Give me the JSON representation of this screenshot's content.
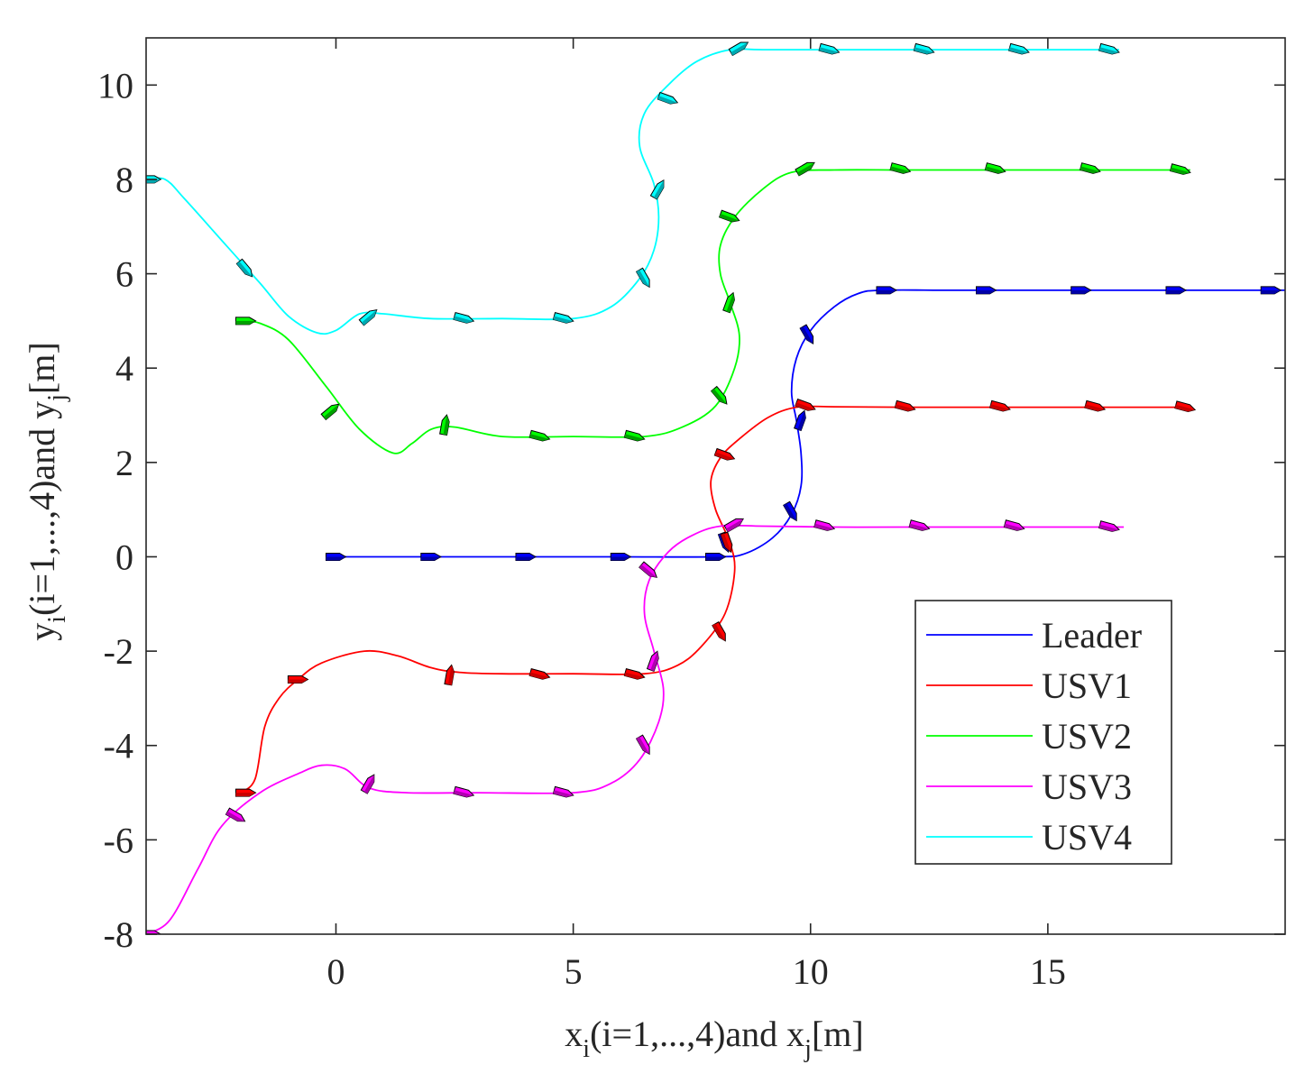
{
  "chart_data": {
    "type": "line",
    "title": "",
    "xlabel": "x_i(i=1,...,4)and x_j[m]",
    "ylabel": "y_i(i=1,...,4)and y_j[m]",
    "xlabel_parts": {
      "a": "x",
      "a_sub": "i",
      "b": "(i=1,...,4)and x",
      "b_sub": "j",
      "c": "[m]"
    },
    "ylabel_parts": {
      "a": "y",
      "a_sub": "i",
      "b": "(i=1,...,4)and y",
      "b_sub": "j",
      "c": "[m]"
    },
    "xlim": [
      -4,
      20
    ],
    "ylim": [
      -8,
      11
    ],
    "xticks": [
      0,
      5,
      10,
      15
    ],
    "yticks": [
      -8,
      -6,
      -4,
      -2,
      0,
      2,
      4,
      6,
      8,
      10
    ],
    "xtick_labels": [
      "0",
      "5",
      "10",
      "15"
    ],
    "ytick_labels": [
      "-8",
      "-6",
      "-4",
      "-2",
      "0",
      "2",
      "4",
      "6",
      "8",
      "10"
    ],
    "grid": false,
    "legend_position": "lower-right",
    "series": [
      {
        "name": "Leader",
        "color": "#0000ff",
        "dark": "#0000a8",
        "points": [
          [
            0,
            0
          ],
          [
            2,
            0
          ],
          [
            4,
            0
          ],
          [
            6,
            0
          ],
          [
            8,
            0
          ],
          [
            8.6,
            0.06
          ],
          [
            9.2,
            0.4
          ],
          [
            9.6,
            0.9
          ],
          [
            9.8,
            1.5
          ],
          [
            9.8,
            2.2
          ],
          [
            9.7,
            2.9
          ],
          [
            9.6,
            3.5
          ],
          [
            9.7,
            4.2
          ],
          [
            10,
            4.8
          ],
          [
            10.5,
            5.3
          ],
          [
            11,
            5.58
          ],
          [
            11.5,
            5.65
          ],
          [
            13,
            5.65
          ],
          [
            15,
            5.65
          ],
          [
            17,
            5.65
          ],
          [
            19,
            5.65
          ],
          [
            20,
            5.65
          ]
        ],
        "markers": [
          [
            0,
            0,
            0
          ],
          [
            2,
            0,
            0
          ],
          [
            4,
            0,
            0
          ],
          [
            6,
            0,
            0
          ],
          [
            8,
            0,
            0
          ],
          [
            8.2,
            0.3,
            70
          ],
          [
            9.6,
            0.95,
            60
          ],
          [
            9.8,
            2.9,
            -70
          ],
          [
            9.95,
            4.7,
            60
          ],
          [
            11.6,
            5.65,
            0
          ],
          [
            13.7,
            5.65,
            0
          ],
          [
            15.7,
            5.65,
            0
          ],
          [
            17.7,
            5.65,
            0
          ],
          [
            19.7,
            5.65,
            0
          ]
        ]
      },
      {
        "name": "USV1",
        "color": "#ff0000",
        "dark": "#c80000",
        "points": [
          [
            -2,
            -5
          ],
          [
            -1.7,
            -4.7
          ],
          [
            -1.5,
            -3.6
          ],
          [
            -1.2,
            -3
          ],
          [
            -0.8,
            -2.6
          ],
          [
            -0.3,
            -2.25
          ],
          [
            0.6,
            -2
          ],
          [
            1.3,
            -2.1
          ],
          [
            2,
            -2.35
          ],
          [
            2.6,
            -2.45
          ],
          [
            3.5,
            -2.48
          ],
          [
            5,
            -2.48
          ],
          [
            6.5,
            -2.48
          ],
          [
            7.2,
            -2.3
          ],
          [
            7.7,
            -1.9
          ],
          [
            8.2,
            -1.2
          ],
          [
            8.4,
            -0.3
          ],
          [
            8.3,
            0.3
          ],
          [
            8,
            1
          ],
          [
            7.9,
            1.6
          ],
          [
            8.1,
            2.1
          ],
          [
            8.5,
            2.5
          ],
          [
            9.1,
            2.95
          ],
          [
            9.7,
            3.17
          ],
          [
            10.5,
            3.18
          ],
          [
            12,
            3.17
          ],
          [
            14,
            3.17
          ],
          [
            16,
            3.17
          ],
          [
            18,
            3.17
          ]
        ],
        "markers": [
          [
            -1.9,
            -5,
            0
          ],
          [
            -0.8,
            -2.6,
            0
          ],
          [
            2.4,
            -2.5,
            -80
          ],
          [
            4.3,
            -2.5,
            15
          ],
          [
            6.3,
            -2.5,
            15
          ],
          [
            8.1,
            -1.6,
            60
          ],
          [
            8.25,
            0.3,
            70
          ],
          [
            8.2,
            2.15,
            20
          ],
          [
            9.9,
            3.2,
            20
          ],
          [
            12,
            3.18,
            15
          ],
          [
            14,
            3.18,
            15
          ],
          [
            16,
            3.18,
            15
          ],
          [
            17.9,
            3.17,
            15
          ]
        ]
      },
      {
        "name": "USV2",
        "color": "#00ff00",
        "dark": "#00a000",
        "points": [
          [
            -2,
            5
          ],
          [
            -1.6,
            4.95
          ],
          [
            -1,
            4.6
          ],
          [
            -0.2,
            3.6
          ],
          [
            0.5,
            2.7
          ],
          [
            1.2,
            2.2
          ],
          [
            1.6,
            2.4
          ],
          [
            2,
            2.7
          ],
          [
            2.5,
            2.75
          ],
          [
            3.5,
            2.55
          ],
          [
            5,
            2.55
          ],
          [
            6.5,
            2.55
          ],
          [
            7.3,
            2.75
          ],
          [
            8,
            3.2
          ],
          [
            8.4,
            4
          ],
          [
            8.5,
            4.7
          ],
          [
            8.3,
            5.4
          ],
          [
            8.1,
            6
          ],
          [
            8.1,
            6.6
          ],
          [
            8.4,
            7.2
          ],
          [
            9,
            7.8
          ],
          [
            9.6,
            8.15
          ],
          [
            10.5,
            8.2
          ],
          [
            12,
            8.2
          ],
          [
            14,
            8.2
          ],
          [
            16,
            8.2
          ],
          [
            18,
            8.2
          ]
        ],
        "markers": [
          [
            -1.9,
            5,
            0
          ],
          [
            -0.1,
            3.1,
            -40
          ],
          [
            2.3,
            2.8,
            -80
          ],
          [
            4.3,
            2.55,
            15
          ],
          [
            6.3,
            2.55,
            15
          ],
          [
            8.1,
            3.4,
            50
          ],
          [
            8.3,
            5.4,
            -70
          ],
          [
            8.3,
            7.2,
            20
          ],
          [
            9.9,
            8.25,
            -30
          ],
          [
            11.9,
            8.22,
            15
          ],
          [
            13.9,
            8.22,
            15
          ],
          [
            15.9,
            8.22,
            15
          ],
          [
            17.8,
            8.2,
            15
          ]
        ]
      },
      {
        "name": "USV3",
        "color": "#ff00ff",
        "dark": "#b000b0",
        "points": [
          [
            -4,
            -8
          ],
          [
            -3.5,
            -7.7
          ],
          [
            -2.9,
            -6.6
          ],
          [
            -2.4,
            -5.7
          ],
          [
            -1.6,
            -5
          ],
          [
            -0.8,
            -4.6
          ],
          [
            -0.3,
            -4.42
          ],
          [
            0.2,
            -4.5
          ],
          [
            0.7,
            -4.9
          ],
          [
            1.5,
            -5
          ],
          [
            3,
            -5
          ],
          [
            5,
            -5
          ],
          [
            5.8,
            -4.8
          ],
          [
            6.4,
            -4.3
          ],
          [
            6.8,
            -3.5
          ],
          [
            6.9,
            -2.8
          ],
          [
            6.7,
            -2
          ],
          [
            6.5,
            -1.2
          ],
          [
            6.6,
            -0.5
          ],
          [
            7,
            0.1
          ],
          [
            7.5,
            0.45
          ],
          [
            8.1,
            0.65
          ],
          [
            9,
            0.65
          ],
          [
            10.5,
            0.63
          ],
          [
            12,
            0.63
          ],
          [
            14,
            0.63
          ],
          [
            16,
            0.63
          ],
          [
            16.6,
            0.63
          ]
        ],
        "markers": [
          [
            -3.9,
            -8,
            0
          ],
          [
            -2.1,
            -5.5,
            30
          ],
          [
            0.7,
            -4.8,
            -60
          ],
          [
            2.7,
            -5,
            15
          ],
          [
            4.8,
            -5,
            15
          ],
          [
            6.5,
            -4,
            60
          ],
          [
            6.7,
            -2.2,
            -70
          ],
          [
            6.6,
            -0.3,
            40
          ],
          [
            8.4,
            0.7,
            -30
          ],
          [
            10.3,
            0.65,
            15
          ],
          [
            12.3,
            0.65,
            15
          ],
          [
            14.3,
            0.65,
            15
          ],
          [
            16.3,
            0.63,
            15
          ]
        ]
      },
      {
        "name": "USV4",
        "color": "#00ffff",
        "dark": "#00a8b0",
        "points": [
          [
            -4,
            8
          ],
          [
            -3.6,
            8
          ],
          [
            -3.2,
            7.6
          ],
          [
            -2.4,
            6.7
          ],
          [
            -1.6,
            5.8
          ],
          [
            -1,
            5.1
          ],
          [
            -0.4,
            4.75
          ],
          [
            0,
            4.8
          ],
          [
            0.5,
            5.15
          ],
          [
            1,
            5.15
          ],
          [
            2,
            5.05
          ],
          [
            3.5,
            5.05
          ],
          [
            5,
            5.05
          ],
          [
            5.8,
            5.3
          ],
          [
            6.4,
            5.9
          ],
          [
            6.7,
            6.5
          ],
          [
            6.8,
            7.2
          ],
          [
            6.7,
            7.9
          ],
          [
            6.4,
            8.7
          ],
          [
            6.5,
            9.4
          ],
          [
            7,
            10
          ],
          [
            7.6,
            10.5
          ],
          [
            8.3,
            10.75
          ],
          [
            9,
            10.75
          ],
          [
            11,
            10.75
          ],
          [
            13,
            10.75
          ],
          [
            15,
            10.75
          ],
          [
            16.5,
            10.75
          ]
        ],
        "markers": [
          [
            -3.9,
            8,
            0
          ],
          [
            -1.9,
            6.1,
            50
          ],
          [
            0.7,
            5.1,
            -40
          ],
          [
            2.7,
            5.05,
            15
          ],
          [
            4.8,
            5.05,
            15
          ],
          [
            6.5,
            5.9,
            60
          ],
          [
            6.8,
            7.8,
            -60
          ],
          [
            7,
            9.7,
            20
          ],
          [
            8.5,
            10.8,
            -30
          ],
          [
            10.4,
            10.75,
            15
          ],
          [
            12.4,
            10.75,
            15
          ],
          [
            14.4,
            10.75,
            15
          ],
          [
            16.3,
            10.75,
            15
          ]
        ]
      }
    ]
  }
}
